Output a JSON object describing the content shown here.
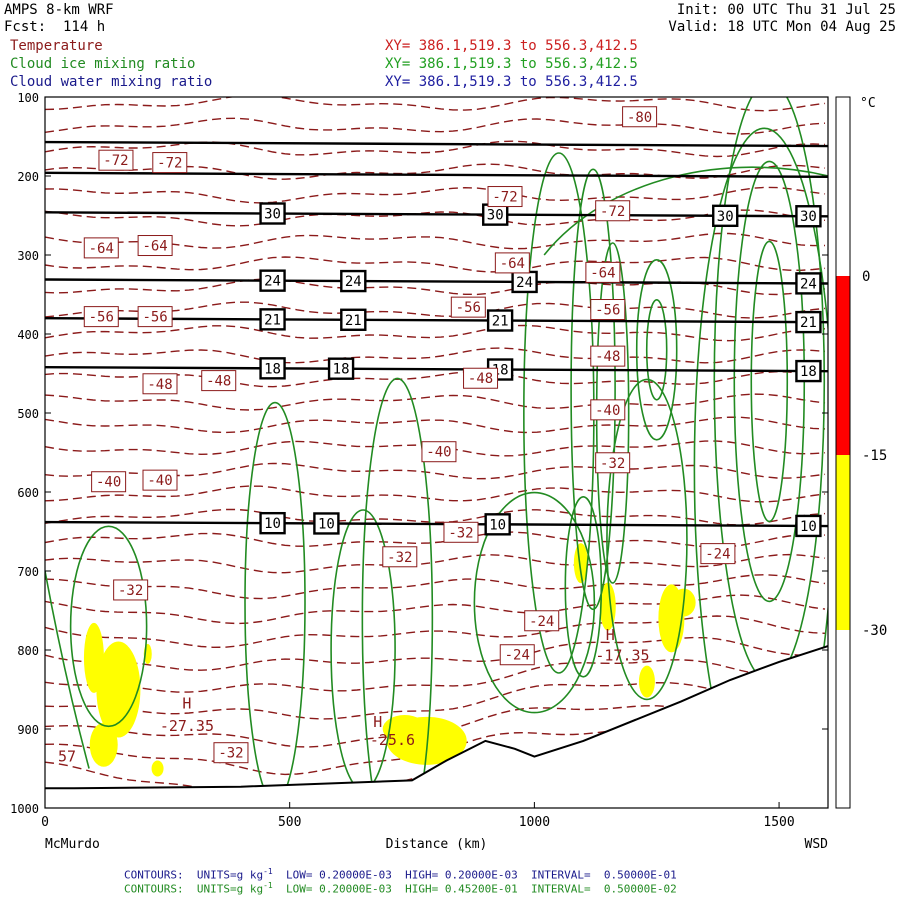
{
  "header": {
    "model": "AMPS 8-km WRF",
    "forecast": "Fcst:  114 h",
    "init": "Init: 00 UTC Thu 31 Jul 25",
    "valid": "Valid: 18 UTC Mon 04 Aug 25",
    "fields": [
      {
        "name": "Temperature",
        "xy": "XY= 386.1,519.3 to 556.3,412.5",
        "color": "#8b1a1a"
      },
      {
        "name": "Cloud ice mixing ratio",
        "xy": "XY= 386.1,519.3 to 556.3,412.5",
        "color": "#228b22"
      },
      {
        "name": "Cloud water mixing ratio",
        "xy": "XY= 386.1,519.3 to 556.3,412.5",
        "color": "#1a1a8b"
      }
    ]
  },
  "chart_data": {
    "type": "contour-cross-section",
    "xlabel": "Distance (km)",
    "x_start_label": "McMurdo",
    "x_end_label": "WSD",
    "xlim": [
      0,
      1600
    ],
    "ylim": [
      1000,
      100
    ],
    "x_ticks": [
      0,
      500,
      1000,
      1500
    ],
    "y_ticks": [
      100,
      200,
      300,
      400,
      500,
      600,
      700,
      800,
      900,
      1000
    ],
    "terrain": [
      [
        0,
        975
      ],
      [
        60,
        975
      ],
      [
        400,
        973
      ],
      [
        750,
        965
      ],
      [
        820,
        940
      ],
      [
        900,
        915
      ],
      [
        960,
        925
      ],
      [
        1000,
        935
      ],
      [
        1100,
        915
      ],
      [
        1300,
        865
      ],
      [
        1400,
        838
      ],
      [
        1500,
        815
      ],
      [
        1600,
        795
      ]
    ],
    "black_lines": [
      {
        "p": 157,
        "label": ""
      },
      {
        "p": 196,
        "label": ""
      },
      {
        "p": 246,
        "label": "30",
        "label_x": [
          465,
          920,
          1390,
          1560
        ]
      },
      {
        "p": 331,
        "label": "24",
        "label_x": [
          465,
          630,
          980,
          1560
        ]
      },
      {
        "p": 380,
        "label": "21",
        "label_x": [
          465,
          630,
          930,
          1560
        ]
      },
      {
        "p": 442,
        "label": "18",
        "label_x": [
          465,
          605,
          930,
          1560
        ]
      },
      {
        "p": 638,
        "label": "10",
        "label_x": [
          465,
          575,
          925,
          1560
        ]
      }
    ],
    "temperature_labels": [
      {
        "text": "-80",
        "x": 1215,
        "p": 125
      },
      {
        "text": "-72",
        "x": 145,
        "p": 180
      },
      {
        "text": "-72",
        "x": 255,
        "p": 183
      },
      {
        "text": "-72",
        "x": 940,
        "p": 226
      },
      {
        "text": "-72",
        "x": 1160,
        "p": 244
      },
      {
        "text": "-64",
        "x": 115,
        "p": 291
      },
      {
        "text": "-64",
        "x": 225,
        "p": 288
      },
      {
        "text": "-64",
        "x": 955,
        "p": 310
      },
      {
        "text": "-64",
        "x": 1140,
        "p": 322
      },
      {
        "text": "-56",
        "x": 115,
        "p": 378
      },
      {
        "text": "-56",
        "x": 225,
        "p": 378
      },
      {
        "text": "-56",
        "x": 865,
        "p": 366
      },
      {
        "text": "-56",
        "x": 1150,
        "p": 369
      },
      {
        "text": "-48",
        "x": 235,
        "p": 463
      },
      {
        "text": "-48",
        "x": 355,
        "p": 459
      },
      {
        "text": "-48",
        "x": 890,
        "p": 456
      },
      {
        "text": "-48",
        "x": 1150,
        "p": 428
      },
      {
        "text": "-40",
        "x": 805,
        "p": 549
      },
      {
        "text": "-40",
        "x": 1150,
        "p": 496
      },
      {
        "text": "-40",
        "x": 130,
        "p": 587
      },
      {
        "text": "-40",
        "x": 235,
        "p": 585
      },
      {
        "text": "-32",
        "x": 1160,
        "p": 563
      },
      {
        "text": "-32",
        "x": 175,
        "p": 724
      },
      {
        "text": "-32",
        "x": 725,
        "p": 682
      },
      {
        "text": "-32",
        "x": 850,
        "p": 651
      },
      {
        "text": "-32",
        "x": 380,
        "p": 930
      },
      {
        "text": "-24",
        "x": 1375,
        "p": 678
      },
      {
        "text": "-24",
        "x": 1015,
        "p": 763
      },
      {
        "text": "-24",
        "x": 965,
        "p": 806
      }
    ],
    "extrema": [
      {
        "text": "H",
        "x": 290,
        "p": 868
      },
      {
        "text": "-27.35",
        "x": 290,
        "p": 896
      },
      {
        "text": "H",
        "x": 680,
        "p": 891
      },
      {
        "text": "-25.6",
        "x": 710,
        "p": 914
      },
      {
        "text": "H",
        "x": 1155,
        "p": 781
      },
      {
        "text": "-17.35",
        "x": 1180,
        "p": 807
      },
      {
        "text": "57",
        "x": 45,
        "p": 935
      }
    ],
    "colorbar": {
      "unit": "°C",
      "labels": [
        "0",
        "-15",
        "-30"
      ],
      "segments": [
        {
          "color": "#ffffff",
          "label": "above 0"
        },
        {
          "color": "#ff0000",
          "label": "0 to -15"
        },
        {
          "color": "#ffff00",
          "label": "-15 to -30"
        },
        {
          "color": "#ffffff",
          "label": "below -30"
        }
      ]
    },
    "colors": {
      "temperature": "#8b1a1a",
      "cloud_ice": "#228b22",
      "cloud_water_fill": "#ffff00",
      "black_lines": "#000000"
    }
  },
  "footer": {
    "line1": {
      "prefix": "CONTOURS:  UNITS=g kg",
      "sup": "-1",
      "rest": "  LOW= 0.20000E-03  HIGH= 0.20000E-03  INTERVAL=  0.50000E-01",
      "color": "#1a1a8b"
    },
    "line2": {
      "prefix": "CONTOURS:  UNITS=g kg",
      "sup": "-1",
      "rest": "  LOW= 0.20000E-03  HIGH= 0.45200E-01  INTERVAL=  0.50000E-02",
      "color": "#228b22"
    }
  }
}
